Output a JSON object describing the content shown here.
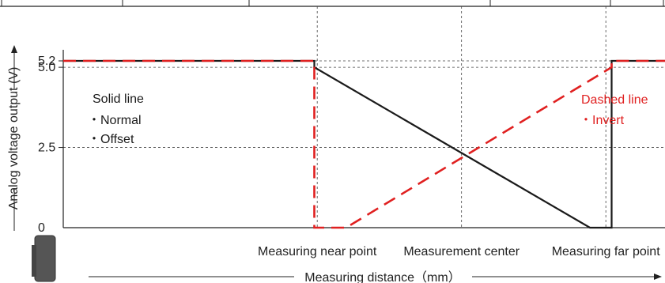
{
  "chart_data": {
    "type": "line",
    "title": "",
    "xlabel": "Measuring distance（mm）",
    "ylabel": "Analog voltage output (V)",
    "ylim": [
      0,
      5.2
    ],
    "grid": true,
    "x_categories": [
      "Measuring near point",
      "Measurement center",
      "Measuring far point"
    ],
    "x_positions": [
      0,
      1,
      2
    ],
    "xlim": [
      -1.76,
      2.41
    ],
    "yticks": [
      {
        "value": 0,
        "label": "0"
      },
      {
        "value": 2.5,
        "label": "2.5"
      },
      {
        "value": 5.0,
        "label": "5.0"
      },
      {
        "value": 5.2,
        "label": "5.2"
      }
    ],
    "series": [
      {
        "style": "solid",
        "color": "#1a1a1a",
        "points": [
          [
            -1.76,
            5.2
          ],
          [
            -0.02,
            5.2
          ],
          [
            -0.02,
            5.0
          ],
          [
            1.89,
            0
          ],
          [
            2.04,
            0
          ],
          [
            2.04,
            5.2
          ],
          [
            2.41,
            5.2
          ]
        ]
      },
      {
        "style": "dashed",
        "color": "#e02020",
        "points": [
          [
            -1.76,
            5.2
          ],
          [
            -0.02,
            5.2
          ],
          [
            -0.02,
            0
          ],
          [
            0.2,
            0
          ],
          [
            2.04,
            5.0
          ],
          [
            2.04,
            5.2
          ],
          [
            2.41,
            5.2
          ]
        ]
      }
    ],
    "annotations": {
      "solid": {
        "title": "Solid line",
        "items": [
          "・Normal",
          "・Offset"
        ],
        "color": "#1a1a1a"
      },
      "dashed": {
        "title": "Dashed line",
        "items": [
          "・Invert"
        ],
        "color": "#e02020"
      }
    },
    "legend": "inline"
  }
}
